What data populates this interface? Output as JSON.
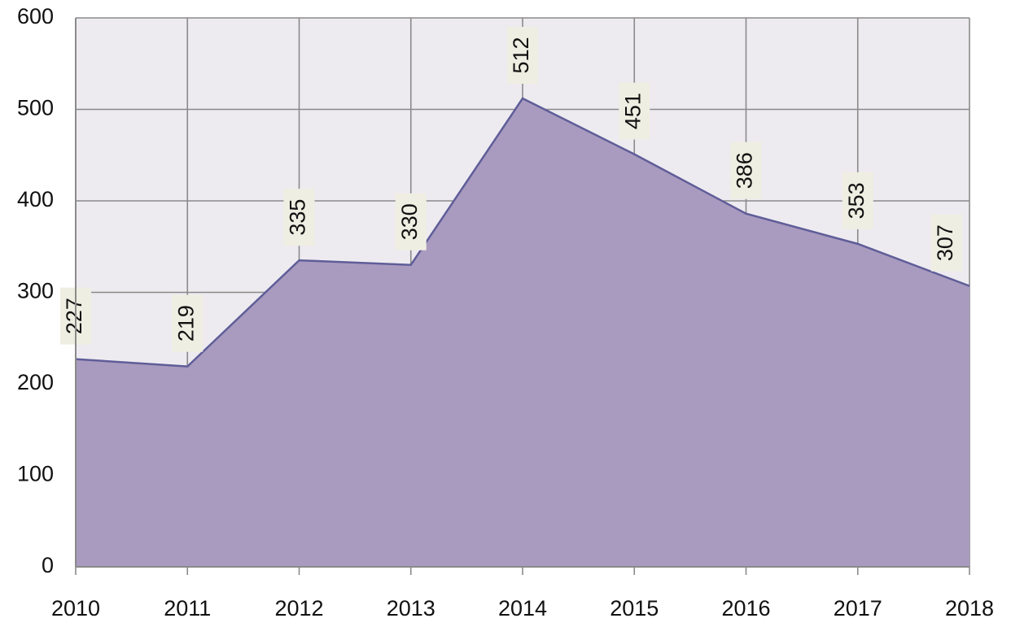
{
  "chart_data": {
    "type": "area",
    "categories": [
      "2010",
      "2011",
      "2012",
      "2013",
      "2014",
      "2015",
      "2016",
      "2017",
      "2018"
    ],
    "values": [
      227,
      219,
      335,
      330,
      512,
      451,
      386,
      353,
      307
    ],
    "color": "#a99bbf",
    "line_color": "#5f5d98",
    "ylim": [
      0,
      600
    ],
    "yticks": [
      0,
      100,
      200,
      300,
      400,
      500,
      600
    ],
    "grid": true
  }
}
